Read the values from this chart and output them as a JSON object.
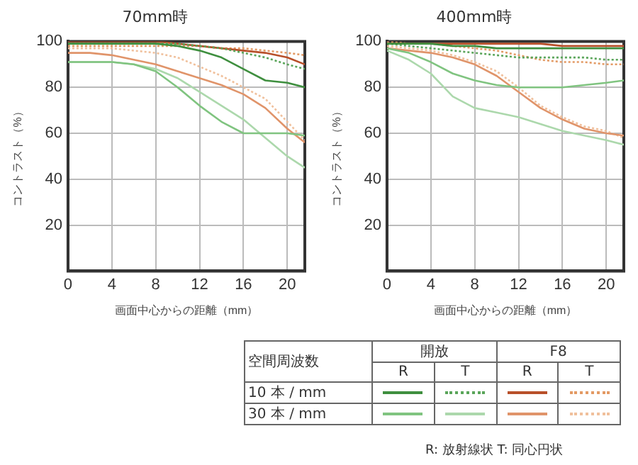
{
  "chart_data": [
    {
      "type": "line",
      "title": "70mm時",
      "xlabel": "画面中心からの距離（mm）",
      "ylabel": "コントラスト（%）",
      "x": [
        0,
        2,
        4,
        6,
        8,
        10,
        12,
        14,
        16,
        18,
        20,
        21.6
      ],
      "xlim": [
        0,
        21.6
      ],
      "xticks": [
        0,
        4,
        8,
        12,
        16,
        20
      ],
      "ylim": [
        0,
        100
      ],
      "yticks": [
        20,
        40,
        60,
        80,
        100
      ],
      "grid": true,
      "legend": false,
      "series": [
        {
          "color": "#3f8f3f",
          "line_style": "solid",
          "values": [
            99,
            99,
            99,
            99,
            99,
            98,
            96,
            93,
            88,
            83,
            82,
            80
          ]
        },
        {
          "color": "#5aa55a",
          "line_style": "dotted",
          "values": [
            99,
            99,
            99,
            99,
            99,
            99,
            98,
            97,
            95,
            93,
            90,
            88
          ]
        },
        {
          "color": "#b8502a",
          "line_style": "solid",
          "values": [
            100,
            100,
            100,
            100,
            100,
            99,
            98,
            97,
            96,
            95,
            93,
            90
          ]
        },
        {
          "color": "#e39a64",
          "line_style": "dotted",
          "values": [
            98,
            98,
            98,
            98,
            98,
            98,
            98,
            97,
            97,
            96,
            95,
            94
          ]
        },
        {
          "color": "#80c480",
          "line_style": "solid",
          "values": [
            91,
            91,
            91,
            90,
            87,
            80,
            72,
            65,
            60,
            60,
            60,
            59
          ]
        },
        {
          "color": "#acd8ac",
          "line_style": "solid",
          "values": [
            91,
            91,
            91,
            90,
            88,
            84,
            78,
            72,
            66,
            58,
            50,
            45
          ]
        },
        {
          "color": "#e0946a",
          "line_style": "solid",
          "values": [
            95,
            95,
            94,
            92,
            90,
            87,
            84,
            81,
            77,
            71,
            62,
            56
          ]
        },
        {
          "color": "#f0c09c",
          "line_style": "dotted",
          "values": [
            97,
            97,
            97,
            96,
            95,
            93,
            89,
            85,
            80,
            75,
            65,
            57
          ]
        }
      ]
    },
    {
      "type": "line",
      "title": "400mm時",
      "xlabel": "画面中心からの距離（mm）",
      "ylabel": "コントラスト（%）",
      "x": [
        0,
        2,
        4,
        6,
        8,
        10,
        12,
        14,
        16,
        18,
        20,
        21.6
      ],
      "xlim": [
        0,
        21.6
      ],
      "xticks": [
        0,
        4,
        8,
        12,
        16,
        20
      ],
      "ylim": [
        0,
        100
      ],
      "yticks": [
        20,
        40,
        60,
        80,
        100
      ],
      "grid": true,
      "legend": false,
      "series": [
        {
          "color": "#3f8f3f",
          "line_style": "solid",
          "values": [
            99,
            99,
            99,
            98,
            98,
            97,
            97,
            97,
            97,
            97,
            97,
            97
          ]
        },
        {
          "color": "#5aa55a",
          "line_style": "dotted",
          "values": [
            99,
            98,
            97,
            96,
            95,
            94,
            93,
            93,
            93,
            93,
            92,
            92
          ]
        },
        {
          "color": "#b8502a",
          "line_style": "solid",
          "values": [
            99,
            99,
            99,
            99,
            99,
            99,
            99,
            99,
            98,
            98,
            98,
            98
          ]
        },
        {
          "color": "#e39a64",
          "line_style": "dotted",
          "values": [
            100,
            99,
            99,
            98,
            97,
            96,
            94,
            92,
            91,
            91,
            90,
            90
          ]
        },
        {
          "color": "#80c480",
          "line_style": "solid",
          "values": [
            97,
            95,
            91,
            86,
            83,
            81,
            80,
            80,
            80,
            81,
            82,
            83
          ]
        },
        {
          "color": "#acd8ac",
          "line_style": "solid",
          "values": [
            96,
            92,
            86,
            76,
            71,
            69,
            67,
            64,
            61,
            59,
            57,
            55
          ]
        },
        {
          "color": "#e0946a",
          "line_style": "solid",
          "values": [
            97,
            96,
            95,
            93,
            90,
            85,
            78,
            71,
            66,
            62,
            60,
            59
          ]
        },
        {
          "color": "#f0c09c",
          "line_style": "dotted",
          "values": [
            98,
            97,
            96,
            94,
            91,
            87,
            80,
            72,
            67,
            63,
            61,
            58
          ]
        }
      ],
      "annotations": [
        "空間周波数",
        "開放",
        "F8",
        "R",
        "T",
        "R",
        "T",
        "10 本 / mm",
        "30 本 / mm",
        "R: 放射線状  T: 同心円状"
      ]
    }
  ]
}
